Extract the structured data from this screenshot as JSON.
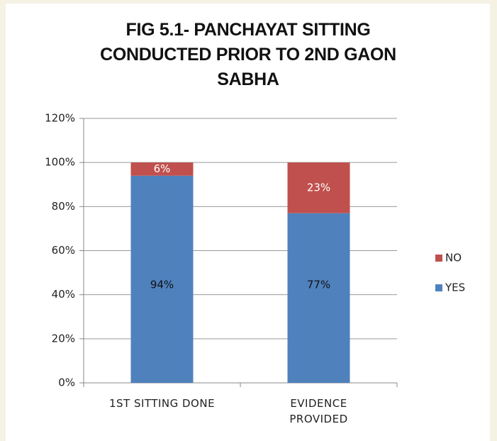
{
  "chart_data": {
    "type": "stacked_bar",
    "title": "FIG 5.1- PANCHAYAT SITTING CONDUCTED PRIOR TO 2ND GAON SABHA",
    "categories": [
      "1ST SITTING DONE",
      "EVIDENCE PROVIDED"
    ],
    "series": [
      {
        "name": "YES",
        "color": "#4f81bd",
        "values": [
          94,
          77
        ],
        "value_labels": [
          "94%",
          "77%"
        ]
      },
      {
        "name": "NO",
        "color": "#c0504d",
        "values": [
          6,
          23
        ],
        "value_labels": [
          "6%",
          "23%"
        ]
      }
    ],
    "ylim": [
      0,
      120
    ],
    "yticks": [
      {
        "value": 0,
        "label": "0%"
      },
      {
        "value": 20,
        "label": "20%"
      },
      {
        "value": 40,
        "label": "40%"
      },
      {
        "value": 60,
        "label": "60%"
      },
      {
        "value": 80,
        "label": "80%"
      },
      {
        "value": 100,
        "label": "100%"
      },
      {
        "value": 120,
        "label": "120%"
      }
    ],
    "grid": true,
    "legend": "right"
  }
}
